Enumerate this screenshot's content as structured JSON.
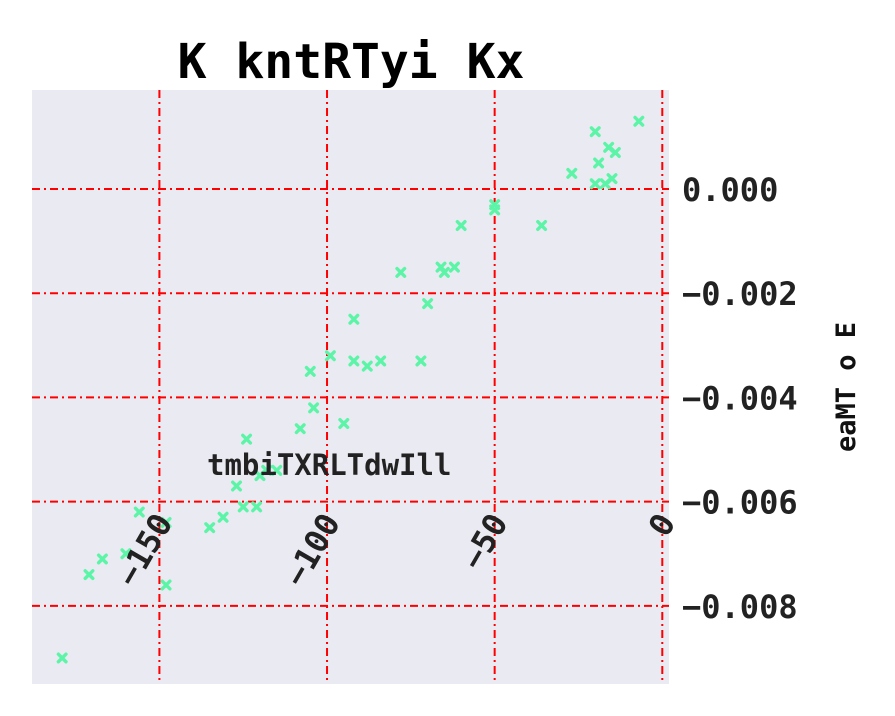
{
  "chart_data": {
    "type": "scatter",
    "title": "K kntRTyi Kx",
    "xlabel": "",
    "ylabel": "eaMT o E",
    "annotation": "tmbiTXRLTdwIll",
    "xlim": [
      -188,
      2
    ],
    "ylim": [
      -0.0095,
      0.0019
    ],
    "xticks": [
      -150,
      -100,
      -50,
      0
    ],
    "yticks": [
      0.0,
      -0.002,
      -0.004,
      -0.006,
      -0.008
    ],
    "xtick_labels": [
      "−150",
      "−100",
      "−50",
      "0"
    ],
    "ytick_labels": [
      "0.000",
      "−0.002",
      "−0.004",
      "−0.006",
      "−0.008"
    ],
    "grid": true,
    "grid_color": "#ff0000",
    "background_color": "#eaeaf2",
    "marker": "x",
    "marker_color": "#5cf5a8",
    "y_axis_position": "right",
    "points": [
      {
        "x": -179,
        "y": -0.009
      },
      {
        "x": -171,
        "y": -0.0074
      },
      {
        "x": -167,
        "y": -0.0071
      },
      {
        "x": -160,
        "y": -0.007
      },
      {
        "x": -156,
        "y": -0.0062
      },
      {
        "x": -148,
        "y": -0.0064
      },
      {
        "x": -148,
        "y": -0.0076
      },
      {
        "x": -135,
        "y": -0.0065
      },
      {
        "x": -131,
        "y": -0.0063
      },
      {
        "x": -127,
        "y": -0.0057
      },
      {
        "x": -125,
        "y": -0.0061
      },
      {
        "x": -124,
        "y": -0.0048
      },
      {
        "x": -121,
        "y": -0.0061
      },
      {
        "x": -120,
        "y": -0.0055
      },
      {
        "x": -118,
        "y": -0.0054
      },
      {
        "x": -115,
        "y": -0.0054
      },
      {
        "x": -108,
        "y": -0.0046
      },
      {
        "x": -104,
        "y": -0.0042
      },
      {
        "x": -105,
        "y": -0.0035
      },
      {
        "x": -99,
        "y": -0.0032
      },
      {
        "x": -95,
        "y": -0.0045
      },
      {
        "x": -92,
        "y": -0.0025
      },
      {
        "x": -92,
        "y": -0.0033
      },
      {
        "x": -88,
        "y": -0.0034
      },
      {
        "x": -84,
        "y": -0.0033
      },
      {
        "x": -78,
        "y": -0.0016
      },
      {
        "x": -72,
        "y": -0.0033
      },
      {
        "x": -70,
        "y": -0.0022
      },
      {
        "x": -66,
        "y": -0.0015
      },
      {
        "x": -65,
        "y": -0.0016
      },
      {
        "x": -62,
        "y": -0.0015
      },
      {
        "x": -60,
        "y": -0.0007
      },
      {
        "x": -50,
        "y": -0.0004
      },
      {
        "x": -50,
        "y": -0.0003
      },
      {
        "x": -36,
        "y": -0.0007
      },
      {
        "x": -27,
        "y": 0.0003
      },
      {
        "x": -20,
        "y": 0.0011
      },
      {
        "x": -20,
        "y": 0.0001
      },
      {
        "x": -19,
        "y": 0.0005
      },
      {
        "x": -17,
        "y": 0.0001
      },
      {
        "x": -16,
        "y": 0.0008
      },
      {
        "x": -14,
        "y": 0.0007
      },
      {
        "x": -15,
        "y": 0.0002
      },
      {
        "x": -7,
        "y": 0.0013
      }
    ]
  }
}
